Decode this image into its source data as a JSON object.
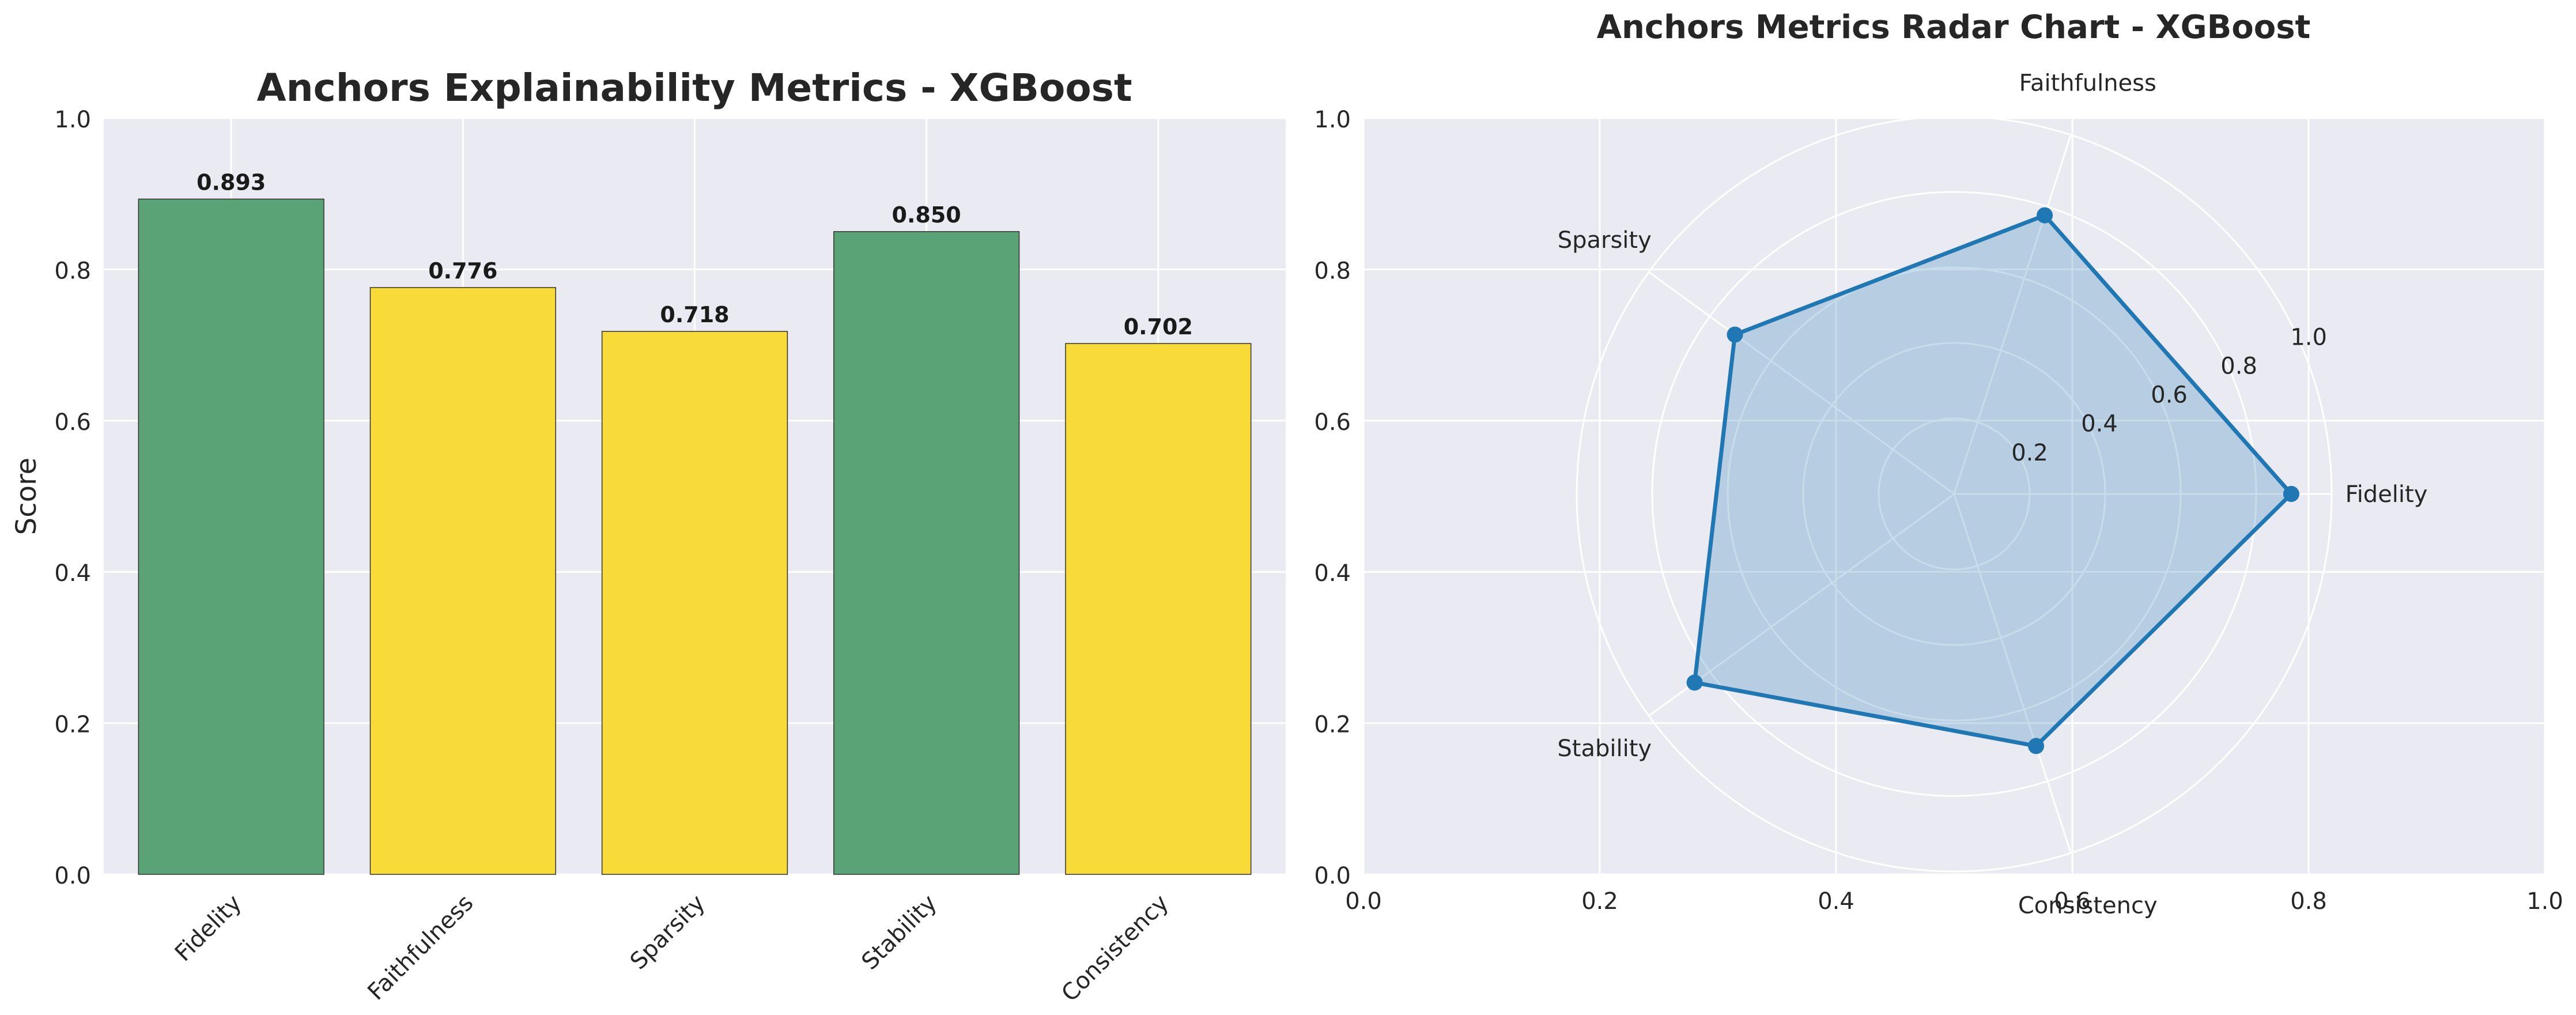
{
  "chart_data": [
    {
      "type": "bar",
      "title": "Anchors Explainability Metrics - XGBoost",
      "xlabel": "",
      "ylabel": "Score",
      "ylim": [
        0,
        1.0
      ],
      "yticks": [
        "0.0",
        "0.2",
        "0.4",
        "0.6",
        "0.8",
        "1.0"
      ],
      "categories": [
        "Fidelity",
        "Faithfulness",
        "Sparsity",
        "Stability",
        "Consistency"
      ],
      "values": [
        0.893,
        0.776,
        0.718,
        0.85,
        0.702
      ],
      "value_labels": [
        "0.893",
        "0.776",
        "0.718",
        "0.850",
        "0.702"
      ],
      "bar_colors": [
        "#55a072",
        "#f8da33",
        "#f8da33",
        "#55a072",
        "#f8da33"
      ],
      "grid": true
    },
    {
      "type": "radar",
      "title": "Anchors Metrics Radar Chart - XGBoost",
      "axes": [
        "Fidelity",
        "Faithfulness",
        "Sparsity",
        "Stability",
        "Consistency"
      ],
      "values": [
        0.893,
        0.776,
        0.718,
        0.85,
        0.702
      ],
      "radial_ticks": [
        "0.2",
        "0.4",
        "0.6",
        "0.8",
        "1.0"
      ],
      "rlim": [
        0,
        1.0
      ],
      "background_xticks": [
        "0.0",
        "0.2",
        "0.4",
        "0.6",
        "0.8",
        "1.0"
      ],
      "background_yticks": [
        "0.0",
        "0.2",
        "0.4",
        "0.6",
        "0.8",
        "1.0"
      ],
      "line_color": "#1f77b4",
      "fill_color": "#1f77b4"
    }
  ]
}
